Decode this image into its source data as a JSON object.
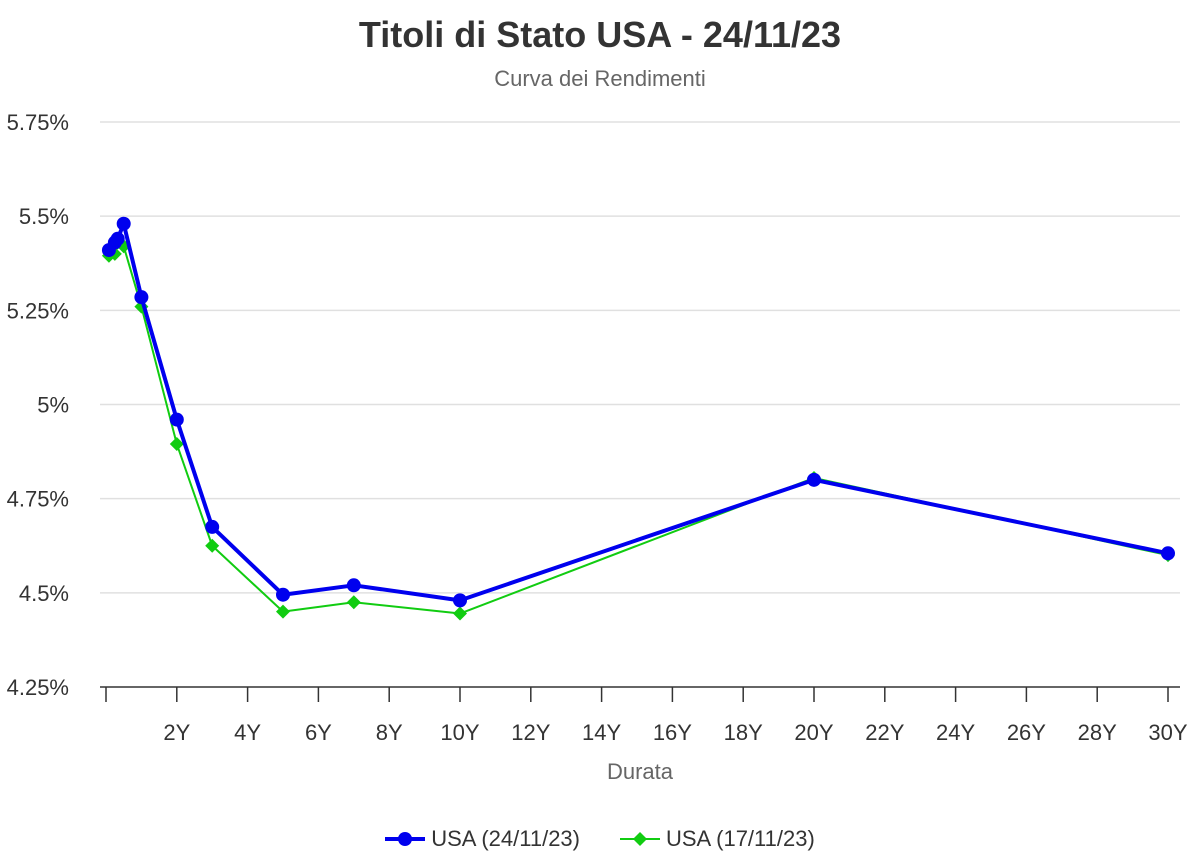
{
  "chart_data": {
    "type": "line",
    "title": "Titoli di Stato USA - 24/11/23",
    "subtitle": "Curva dei Rendimenti",
    "xlabel": "Durata",
    "ylabel": "",
    "xlim": [
      0,
      30
    ],
    "ylim": [
      4.25,
      5.75
    ],
    "x_ticks": [
      {
        "value": 2,
        "label": "2Y"
      },
      {
        "value": 4,
        "label": "4Y"
      },
      {
        "value": 6,
        "label": "6Y"
      },
      {
        "value": 8,
        "label": "8Y"
      },
      {
        "value": 10,
        "label": "10Y"
      },
      {
        "value": 12,
        "label": "12Y"
      },
      {
        "value": 14,
        "label": "14Y"
      },
      {
        "value": 16,
        "label": "16Y"
      },
      {
        "value": 18,
        "label": "18Y"
      },
      {
        "value": 20,
        "label": "20Y"
      },
      {
        "value": 22,
        "label": "22Y"
      },
      {
        "value": 24,
        "label": "24Y"
      },
      {
        "value": 26,
        "label": "26Y"
      },
      {
        "value": 28,
        "label": "28Y"
      },
      {
        "value": 30,
        "label": "30Y"
      }
    ],
    "y_ticks": [
      {
        "value": 4.25,
        "label": "4.25%"
      },
      {
        "value": 4.5,
        "label": "4.5%"
      },
      {
        "value": 4.75,
        "label": "4.75%"
      },
      {
        "value": 5.0,
        "label": "5%"
      },
      {
        "value": 5.25,
        "label": "5.25%"
      },
      {
        "value": 5.5,
        "label": "5.5%"
      },
      {
        "value": 5.75,
        "label": "5.75%"
      }
    ],
    "grid": true,
    "legend_position": "bottom",
    "series": [
      {
        "name": "USA (24/11/23)",
        "color": "#0000ee",
        "marker": "circle",
        "points": [
          [
            0.083,
            5.41
          ],
          [
            0.25,
            5.43
          ],
          [
            0.33,
            5.44
          ],
          [
            0.5,
            5.48
          ],
          [
            1,
            5.285
          ],
          [
            2,
            4.96
          ],
          [
            3,
            4.675
          ],
          [
            5,
            4.495
          ],
          [
            7,
            4.52
          ],
          [
            10,
            4.48
          ],
          [
            20,
            4.8
          ],
          [
            30,
            4.605
          ]
        ]
      },
      {
        "name": "USA (17/11/23)",
        "color": "#11cc11",
        "marker": "diamond",
        "points": [
          [
            0.083,
            5.395
          ],
          [
            0.25,
            5.4
          ],
          [
            0.33,
            5.43
          ],
          [
            0.5,
            5.42
          ],
          [
            1,
            5.26
          ],
          [
            2,
            4.895
          ],
          [
            3,
            4.625
          ],
          [
            5,
            4.45
          ],
          [
            7,
            4.475
          ],
          [
            10,
            4.445
          ],
          [
            20,
            4.805
          ],
          [
            30,
            4.6
          ]
        ]
      }
    ]
  }
}
